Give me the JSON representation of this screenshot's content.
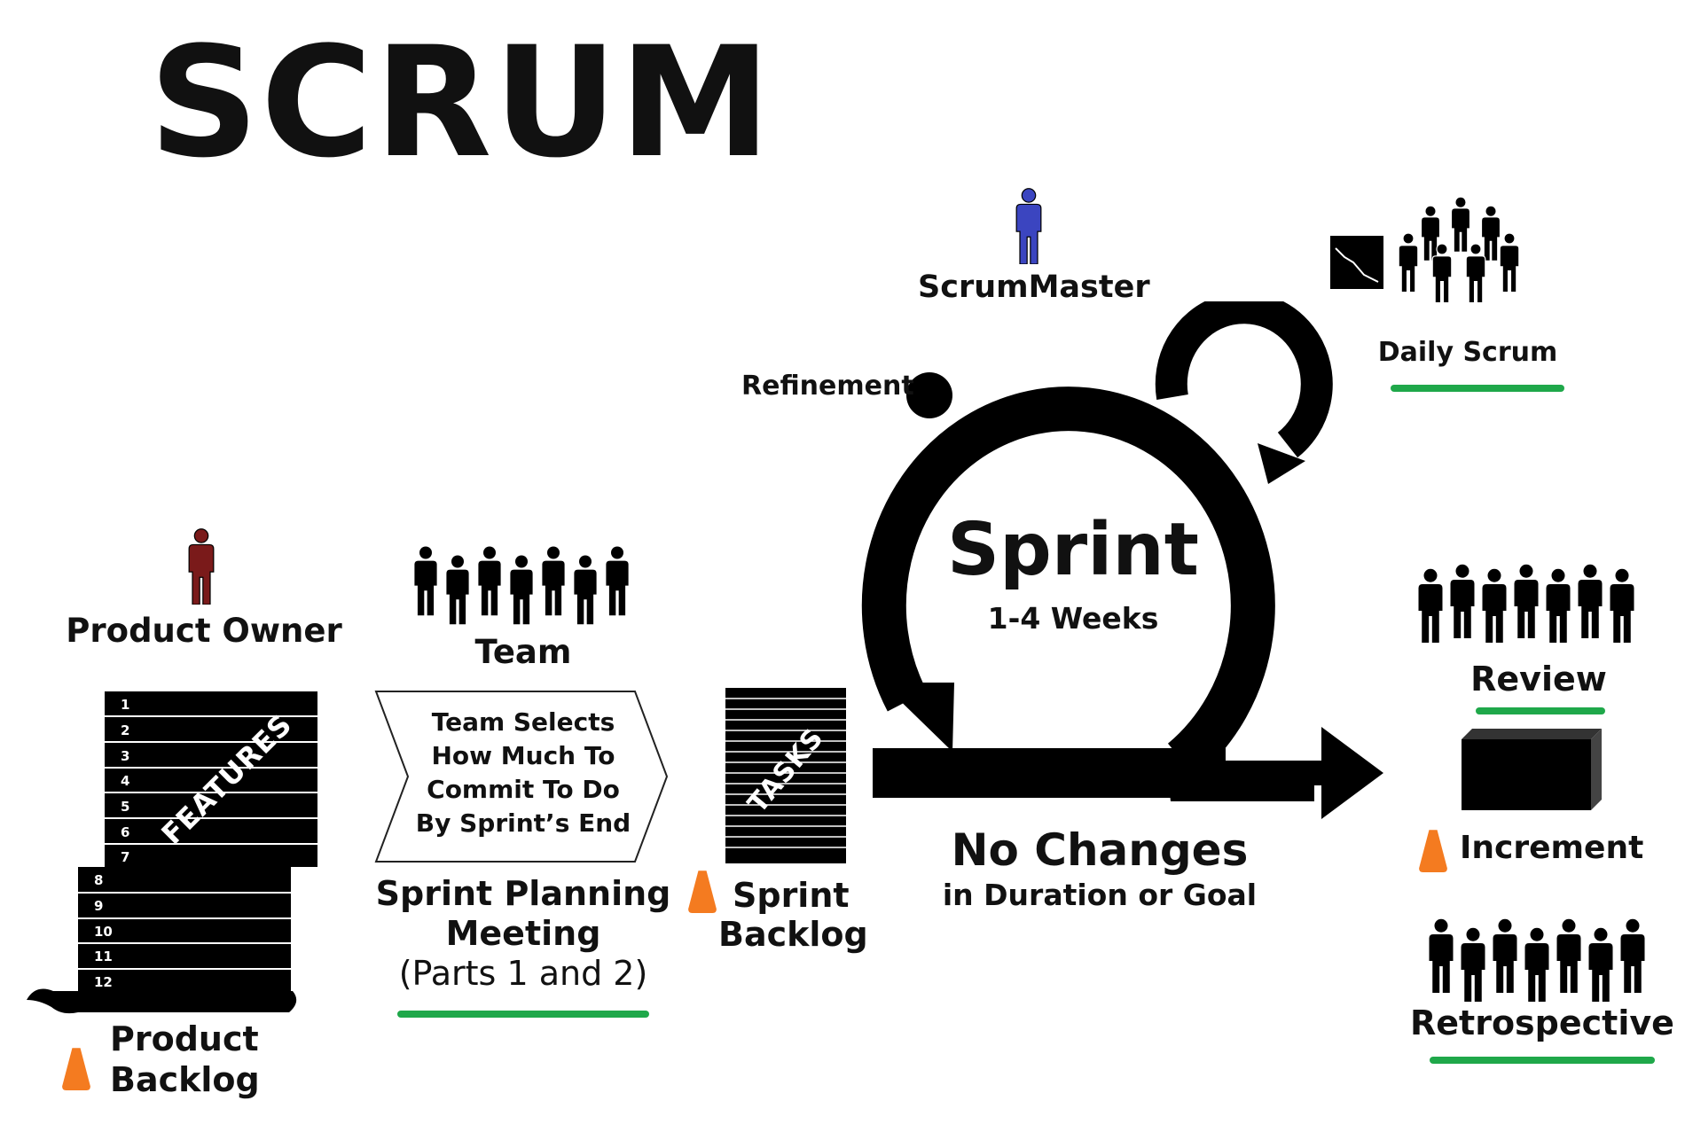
{
  "title": "SCRUM",
  "roles": {
    "scrum_master": "ScrumMaster",
    "product_owner": "Product Owner",
    "team": "Team"
  },
  "product_backlog": {
    "label_line1": "Product",
    "label_line2": "Backlog",
    "stamp": "FEATURES",
    "items": [
      "1",
      "2",
      "3",
      "4",
      "5",
      "6",
      "7",
      "8",
      "9",
      "10",
      "11",
      "12"
    ]
  },
  "sprint_planning": {
    "arrow_text": [
      "Team Selects",
      "How Much To",
      "Commit To Do",
      "By Sprint’s End"
    ],
    "label_line1": "Sprint Planning",
    "label_line2": "Meeting",
    "label_line3": "(Parts 1 and 2)"
  },
  "sprint_backlog": {
    "stamp": "TASKS",
    "label_line1": "Sprint",
    "label_line2": "Backlog"
  },
  "sprint": {
    "title": "Sprint",
    "duration": "1-4 Weeks",
    "refinement": "Refinement",
    "no_changes": "No Changes",
    "no_changes_sub": "in Duration or Goal"
  },
  "events": {
    "daily_scrum": "Daily Scrum",
    "review": "Review",
    "increment": "Increment",
    "retrospective": "Retrospective"
  },
  "colors": {
    "product_owner": "#7a1a1a",
    "scrum_master": "#3b45c0",
    "underline": "#1fa84a",
    "cone": "#f47b20",
    "ink": "#000000"
  }
}
